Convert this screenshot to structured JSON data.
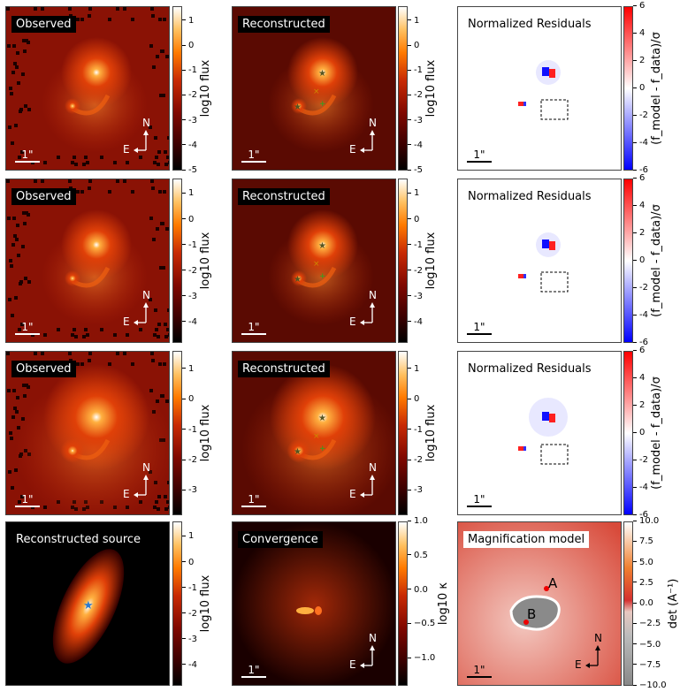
{
  "chart_data": [
    {
      "type": "heatmap",
      "row": 1,
      "title": "Observed",
      "colorbar": {
        "label": "log10 flux",
        "ticks": [
          1,
          0,
          -1,
          -2,
          -3,
          -4,
          -5
        ],
        "range": [
          -5,
          1.6
        ],
        "cmap": "gist_heat"
      }
    },
    {
      "type": "heatmap",
      "row": 1,
      "title": "Reconstructed",
      "colorbar": {
        "label": "log10 flux",
        "ticks": [
          1,
          0,
          -1,
          -2,
          -3,
          -4,
          -5
        ],
        "range": [
          -5,
          1.6
        ],
        "cmap": "gist_heat"
      }
    },
    {
      "type": "heatmap",
      "row": 1,
      "title": "Normalized Residuals",
      "colorbar": {
        "label": "(f_model - f_data)/σ",
        "ticks": [
          6,
          4,
          2,
          0,
          -2,
          -4,
          -6
        ],
        "range": [
          -6,
          6
        ],
        "cmap": "bwr"
      }
    },
    {
      "type": "heatmap",
      "row": 2,
      "title": "Observed",
      "colorbar": {
        "label": "log10 flux",
        "ticks": [
          1,
          0,
          -1,
          -2,
          -3,
          -4
        ],
        "range": [
          -4.8,
          1.6
        ],
        "cmap": "gist_heat"
      }
    },
    {
      "type": "heatmap",
      "row": 2,
      "title": "Reconstructed",
      "colorbar": {
        "label": "log10 flux",
        "ticks": [
          1,
          0,
          -1,
          -2,
          -3,
          -4
        ],
        "range": [
          -4.8,
          1.6
        ],
        "cmap": "gist_heat"
      }
    },
    {
      "type": "heatmap",
      "row": 2,
      "title": "Normalized Residuals",
      "colorbar": {
        "label": "(f_model - f_data)/σ",
        "ticks": [
          6,
          4,
          2,
          0,
          -2,
          -4,
          -6
        ],
        "range": [
          -6,
          6
        ],
        "cmap": "bwr"
      }
    },
    {
      "type": "heatmap",
      "row": 3,
      "title": "Observed",
      "colorbar": {
        "label": "log10 flux",
        "ticks": [
          1,
          0,
          -1,
          -2,
          -3
        ],
        "range": [
          -3.8,
          1.6
        ],
        "cmap": "gist_heat"
      }
    },
    {
      "type": "heatmap",
      "row": 3,
      "title": "Reconstructed",
      "colorbar": {
        "label": "log10 flux",
        "ticks": [
          1,
          0,
          -1,
          -2,
          -3
        ],
        "range": [
          -3.8,
          1.6
        ],
        "cmap": "gist_heat"
      }
    },
    {
      "type": "heatmap",
      "row": 3,
      "title": "Normalized Residuals",
      "colorbar": {
        "label": "(f_model - f_data)/σ",
        "ticks": [
          6,
          4,
          2,
          0,
          -2,
          -4,
          -6
        ],
        "range": [
          -6,
          6
        ],
        "cmap": "bwr"
      }
    },
    {
      "type": "heatmap",
      "row": 4,
      "title": "Reconstructed source",
      "colorbar": {
        "label": "log10 flux",
        "ticks": [
          1,
          0,
          -1,
          -2,
          -3,
          -4
        ],
        "range": [
          -4.8,
          1.6
        ],
        "cmap": "gist_heat"
      }
    },
    {
      "type": "heatmap",
      "row": 4,
      "title": "Convergence",
      "colorbar": {
        "label": "log10 κ",
        "ticks": [
          "1.0",
          "0.5",
          "0.0",
          "−0.5",
          "−1.0"
        ],
        "tick_values": [
          1.0,
          0.5,
          0.0,
          -0.5,
          -1.0
        ],
        "range": [
          -1.4,
          1.0
        ],
        "cmap": "gist_heat"
      }
    },
    {
      "type": "heatmap",
      "row": 4,
      "title": "Magnification model",
      "colorbar": {
        "label": "det (A⁻¹)",
        "ticks": [
          "10.0",
          "7.5",
          "5.0",
          "2.5",
          "0.0",
          "−2.5",
          "−5.0",
          "−7.5",
          "−10.0"
        ],
        "tick_values": [
          10,
          7.5,
          5,
          2.5,
          0,
          -2.5,
          -5,
          -7.5,
          -10
        ],
        "range": [
          -10,
          10
        ],
        "cmap": "RdGy_r"
      },
      "annotations": [
        "A",
        "B"
      ]
    }
  ],
  "scale_label": "1\"",
  "compass": {
    "north": "N",
    "east": "E"
  },
  "colors": {
    "heat_low": "#000000",
    "heat_mid": "#c0200a",
    "heat_high": "#ffffff",
    "resid_pos": "#ff0000",
    "resid_neg": "#0000ff"
  }
}
